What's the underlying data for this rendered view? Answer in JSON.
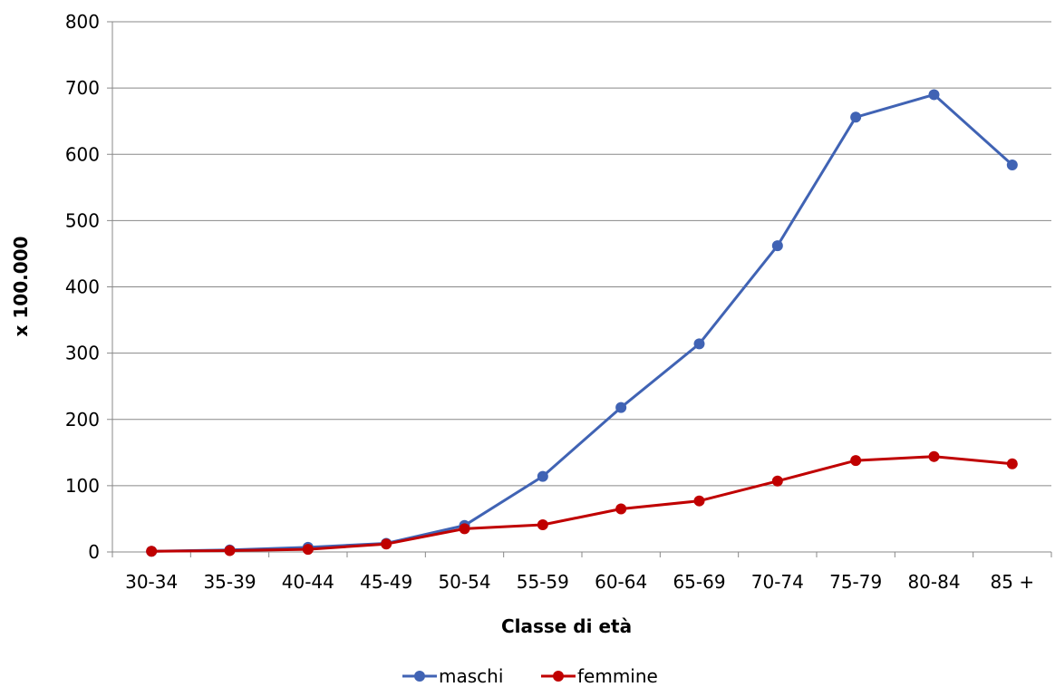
{
  "chart_data": {
    "type": "line",
    "title": "",
    "xlabel": "Classe di età",
    "ylabel": "x 100.000",
    "ylim": [
      0,
      800
    ],
    "yticks": [
      0,
      100,
      200,
      300,
      400,
      500,
      600,
      700,
      800
    ],
    "grid": true,
    "legend_position": "bottom",
    "categories": [
      "30-34",
      "35-39",
      "40-44",
      "45-49",
      "50-54",
      "55-59",
      "60-64",
      "65-69",
      "70-74",
      "75-79",
      "80-84",
      "85 +"
    ],
    "series": [
      {
        "name": "maschi",
        "color": "#4063b4",
        "values": [
          1,
          3,
          7,
          13,
          40,
          114,
          218,
          314,
          462,
          656,
          690,
          584
        ]
      },
      {
        "name": "femmine",
        "color": "#c00000",
        "values": [
          1,
          2,
          4,
          12,
          35,
          41,
          65,
          77,
          107,
          138,
          144,
          133
        ]
      }
    ]
  }
}
